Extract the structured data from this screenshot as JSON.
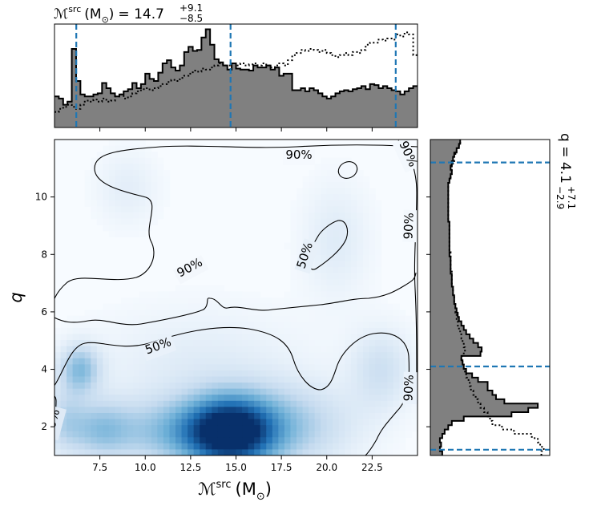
{
  "chart_data": {
    "type": "heatmap",
    "x_quantity": "ℳ",
    "x_sup": "src",
    "x_unit": "(M",
    "x_unit_sub": "⊙",
    "x_unit_close": ")",
    "y_quantity": "q",
    "title_top": {
      "prefix": "ℳ",
      "sup": "src",
      "unit": "(M",
      "unit_sub": "⊙",
      "unit_close": ")",
      "equals": "= 14.7",
      "upper": "+9.1",
      "lower": "−8.5"
    },
    "title_right": {
      "prefix": "q = 4.1",
      "upper": "+7.1",
      "lower": "−2.9"
    },
    "xlim": [
      5.0,
      25.0
    ],
    "ylim": [
      1.0,
      12.0
    ],
    "xticks": [
      "7.5",
      "10.0",
      "12.5",
      "15.0",
      "17.5",
      "20.0",
      "22.5"
    ],
    "yticks": [
      "2",
      "4",
      "6",
      "8",
      "10"
    ],
    "contour_labels": [
      "90%",
      "50%"
    ],
    "mc_quantiles": [
      6.2,
      14.7,
      23.8
    ],
    "q_quantiles": [
      1.2,
      4.1,
      11.2
    ],
    "density_blobs": [
      {
        "x": 14.7,
        "y": 1.8,
        "sx": 1.7,
        "sy": 0.85,
        "w": 1.0
      },
      {
        "x": 11.5,
        "y": 1.8,
        "sx": 2.6,
        "sy": 0.8,
        "w": 0.35
      },
      {
        "x": 18.0,
        "y": 2.0,
        "sx": 2.5,
        "sy": 1.0,
        "w": 0.3
      },
      {
        "x": 6.4,
        "y": 4.0,
        "sx": 0.8,
        "sy": 0.6,
        "w": 0.4
      },
      {
        "x": 7.5,
        "y": 1.9,
        "sx": 1.2,
        "sy": 0.7,
        "w": 0.3
      },
      {
        "x": 5.5,
        "y": 2.2,
        "sx": 0.8,
        "sy": 0.8,
        "w": 0.22
      },
      {
        "x": 23.0,
        "y": 4.0,
        "sx": 1.2,
        "sy": 1.0,
        "w": 0.2
      },
      {
        "x": 20.5,
        "y": 8.5,
        "sx": 1.3,
        "sy": 1.4,
        "w": 0.12
      },
      {
        "x": 9.0,
        "y": 10.3,
        "sx": 1.2,
        "sy": 0.9,
        "w": 0.1
      },
      {
        "x": 13.0,
        "y": 4.0,
        "sx": 4.0,
        "sy": 1.4,
        "w": 0.12
      }
    ],
    "mc_hist_solid": [
      0.3,
      0.28,
      0.22,
      0.25,
      0.76,
      0.45,
      0.32,
      0.3,
      0.3,
      0.32,
      0.33,
      0.43,
      0.38,
      0.33,
      0.3,
      0.32,
      0.35,
      0.37,
      0.43,
      0.38,
      0.42,
      0.52,
      0.47,
      0.45,
      0.53,
      0.62,
      0.65,
      0.58,
      0.55,
      0.6,
      0.73,
      0.78,
      0.74,
      0.75,
      0.87,
      0.95,
      0.8,
      0.66,
      0.63,
      0.6,
      0.56,
      0.62,
      0.57,
      0.56,
      0.56,
      0.55,
      0.6,
      0.58,
      0.58,
      0.6,
      0.56,
      0.58,
      0.5,
      0.52,
      0.52,
      0.36,
      0.36,
      0.38,
      0.35,
      0.38,
      0.36,
      0.33,
      0.3,
      0.28,
      0.3,
      0.33,
      0.35,
      0.36,
      0.35,
      0.37,
      0.38,
      0.4,
      0.37,
      0.42,
      0.41,
      0.38,
      0.4,
      0.38,
      0.36,
      0.35,
      0.32,
      0.35,
      0.38,
      0.4
    ],
    "mc_hist_dotted": [
      0.15,
      0.18,
      0.2,
      0.22,
      0.2,
      0.18,
      0.22,
      0.26,
      0.25,
      0.27,
      0.25,
      0.28,
      0.25,
      0.26,
      0.3,
      0.32,
      0.28,
      0.3,
      0.33,
      0.35,
      0.37,
      0.38,
      0.36,
      0.38,
      0.4,
      0.42,
      0.44,
      0.46,
      0.45,
      0.48,
      0.5,
      0.52,
      0.55,
      0.54,
      0.57,
      0.56,
      0.58,
      0.6,
      0.62,
      0.6,
      0.6,
      0.62,
      0.6,
      0.62,
      0.6,
      0.61,
      0.62,
      0.6,
      0.62,
      0.6,
      0.58,
      0.6,
      0.62,
      0.6,
      0.65,
      0.7,
      0.72,
      0.75,
      0.74,
      0.76,
      0.75,
      0.73,
      0.75,
      0.72,
      0.7,
      0.68,
      0.7,
      0.72,
      0.7,
      0.73,
      0.72,
      0.75,
      0.8,
      0.82,
      0.82,
      0.85,
      0.84,
      0.86,
      0.85,
      0.9,
      0.88,
      0.92,
      0.9,
      0.7
    ],
    "q_hist_solid": [
      0.1,
      0.08,
      0.09,
      0.08,
      0.1,
      0.12,
      0.15,
      0.18,
      0.28,
      0.68,
      0.82,
      0.9,
      0.62,
      0.55,
      0.52,
      0.48,
      0.48,
      0.4,
      0.35,
      0.3,
      0.28,
      0.27,
      0.26,
      0.42,
      0.43,
      0.4,
      0.36,
      0.33,
      0.3,
      0.28,
      0.26,
      0.24,
      0.23,
      0.22,
      0.21,
      0.2,
      0.2,
      0.19,
      0.19,
      0.18,
      0.18,
      0.18,
      0.17,
      0.17,
      0.17,
      0.17,
      0.16,
      0.16,
      0.16,
      0.16,
      0.16,
      0.16,
      0.16,
      0.16,
      0.15,
      0.15,
      0.15,
      0.15,
      0.15,
      0.15,
      0.15,
      0.15,
      0.15,
      0.16,
      0.17,
      0.18,
      0.17,
      0.18,
      0.19,
      0.2,
      0.22,
      0.24,
      0.25
    ],
    "q_hist_dotted": [
      0.93,
      0.95,
      0.92,
      0.9,
      0.85,
      0.7,
      0.6,
      0.52,
      0.5,
      0.48,
      0.45,
      0.42,
      0.4,
      0.38,
      0.36,
      0.34,
      0.33,
      0.32,
      0.3,
      0.29,
      0.28,
      0.27,
      0.26,
      0.28,
      0.29,
      0.28,
      0.27,
      0.26,
      0.25,
      0.24,
      0.23,
      0.22,
      0.22,
      0.21,
      0.21,
      0.2,
      0.2,
      0.19,
      0.19,
      0.18,
      0.18,
      0.18,
      0.18,
      0.17,
      0.17,
      0.17,
      0.17,
      0.16,
      0.16,
      0.16,
      0.16,
      0.16,
      0.16,
      0.16,
      0.15,
      0.15,
      0.15,
      0.15,
      0.15,
      0.15,
      0.15,
      0.15,
      0.15,
      0.16,
      0.17,
      0.18,
      0.18,
      0.19,
      0.2,
      0.21,
      0.22,
      0.24,
      0.25
    ],
    "colors": {
      "hist_fill": "#808080",
      "quantile_line": "#1f77b4",
      "contour": "#000000"
    }
  }
}
